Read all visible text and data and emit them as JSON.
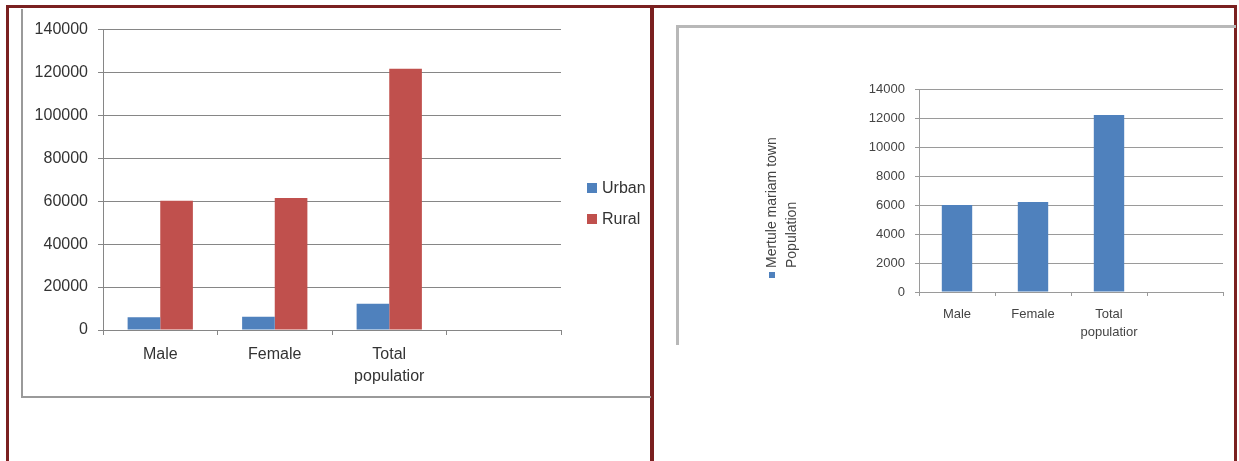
{
  "chart_data": [
    {
      "type": "bar",
      "categories": [
        "Male",
        "Female",
        "Total populatior",
        null
      ],
      "series": [
        {
          "name": "Urban",
          "color": "#4f81bd",
          "values": [
            6000,
            6200,
            12200,
            null
          ]
        },
        {
          "name": "Rural",
          "color": "#c0504d",
          "values": [
            60200,
            61500,
            121700,
            null
          ]
        }
      ],
      "ylim": [
        0,
        140000
      ],
      "yticks": [
        0,
        20000,
        40000,
        60000,
        80000,
        100000,
        120000,
        140000
      ],
      "grid": "y",
      "legend": "right"
    },
    {
      "type": "bar",
      "categories": [
        "Male",
        "Female",
        "Total populatior",
        null
      ],
      "series": [
        {
          "name": "Mertule mariam town Population",
          "color": "#4f81bd",
          "values": [
            6000,
            6200,
            12200,
            null
          ]
        }
      ],
      "ylim": [
        0,
        14000
      ],
      "yticks": [
        0,
        2000,
        4000,
        6000,
        8000,
        10000,
        12000,
        14000
      ],
      "grid": "y",
      "legend": "left"
    }
  ]
}
